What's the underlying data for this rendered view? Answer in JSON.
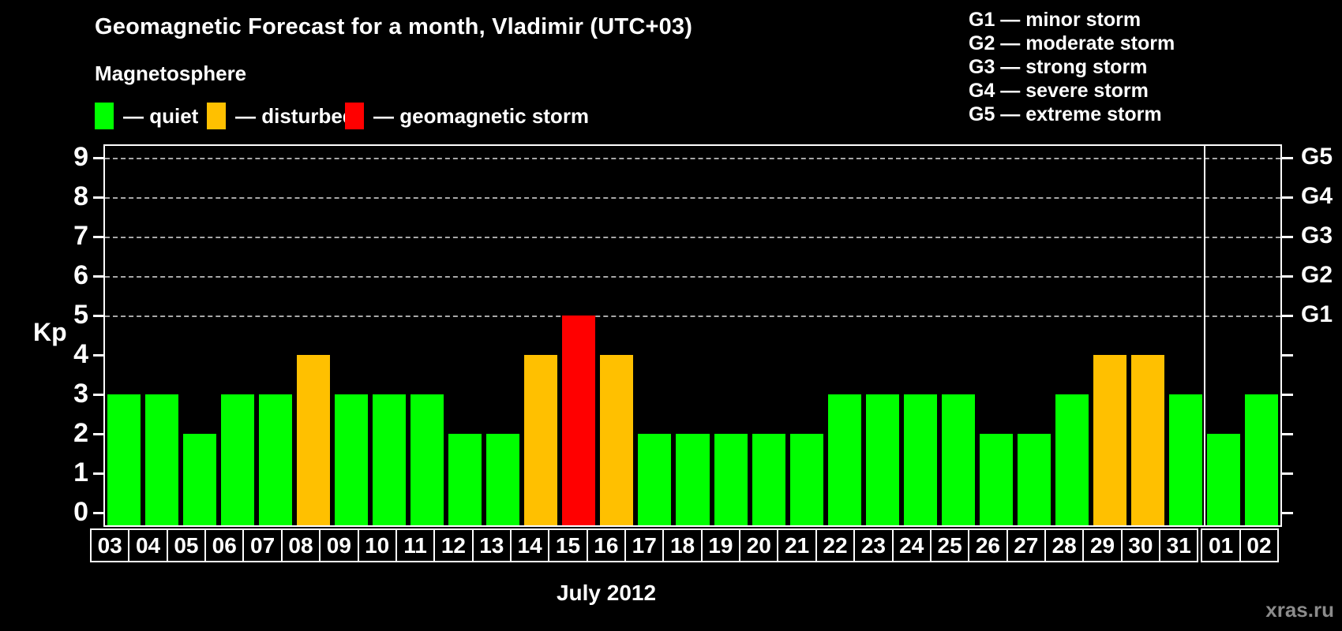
{
  "header": {
    "title": "Geomagnetic Forecast for a month, Vladimir (UTC+03)",
    "subtitle": "Magnetosphere"
  },
  "legend": {
    "quiet": {
      "label": "— quiet",
      "color": "#00ff00"
    },
    "disturbed": {
      "label": "— disturbed",
      "color": "#ffc000"
    },
    "storm": {
      "label": "— geomagnetic storm",
      "color": "#ff0000"
    }
  },
  "storm_scale": [
    "G1 — minor storm",
    "G2 — moderate storm",
    "G3 — strong storm",
    "G4 — severe storm",
    "G5 — extreme storm"
  ],
  "axes": {
    "y_label": "Kp",
    "kp_ticks": [
      0,
      1,
      2,
      3,
      4,
      5,
      6,
      7,
      8,
      9
    ],
    "gridlines_at_kp": [
      5,
      6,
      7,
      8,
      9
    ],
    "g_labels": [
      {
        "label": "G5",
        "kp": 9
      },
      {
        "label": "G4",
        "kp": 8
      },
      {
        "label": "G3",
        "kp": 7
      },
      {
        "label": "G2",
        "kp": 6
      },
      {
        "label": "G1",
        "kp": 5
      }
    ]
  },
  "footer": {
    "x_axis_title": "July 2012",
    "watermark": "xras.ru"
  },
  "chart_data": {
    "type": "bar",
    "title": "Geomagnetic Forecast for a month, Vladimir (UTC+03)",
    "xlabel": "July 2012",
    "ylabel": "Kp",
    "ylim": [
      0,
      9
    ],
    "grid": "dashed horizontal gridlines at Kp 5,6,7,8,9 (G1–G5 levels)",
    "legend_position": "top-left (magnetosphere states), top-right (G storm scale)",
    "categories": [
      "03",
      "04",
      "05",
      "06",
      "07",
      "08",
      "09",
      "10",
      "11",
      "12",
      "13",
      "14",
      "15",
      "16",
      "17",
      "18",
      "19",
      "20",
      "21",
      "22",
      "23",
      "24",
      "25",
      "26",
      "27",
      "28",
      "29",
      "30",
      "31",
      "01",
      "02"
    ],
    "values": [
      3,
      3,
      2,
      3,
      3,
      4,
      3,
      3,
      3,
      2,
      2,
      4,
      5,
      4,
      2,
      2,
      2,
      2,
      2,
      3,
      3,
      3,
      3,
      2,
      2,
      3,
      4,
      4,
      3,
      2,
      3
    ],
    "statuses": [
      "quiet",
      "quiet",
      "quiet",
      "quiet",
      "quiet",
      "disturbed",
      "quiet",
      "quiet",
      "quiet",
      "quiet",
      "quiet",
      "disturbed",
      "storm",
      "disturbed",
      "quiet",
      "quiet",
      "quiet",
      "quiet",
      "quiet",
      "quiet",
      "quiet",
      "quiet",
      "quiet",
      "quiet",
      "quiet",
      "quiet",
      "disturbed",
      "disturbed",
      "quiet",
      "quiet",
      "quiet"
    ],
    "status_colors": {
      "quiet": "#00ff00",
      "disturbed": "#ffc000",
      "storm": "#ff0000"
    },
    "month_separator_after_index": 28
  }
}
